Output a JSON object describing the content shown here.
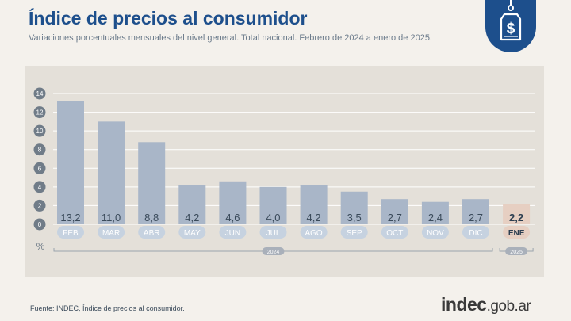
{
  "header": {
    "title": "Índice de precios al consumidor",
    "subtitle": "Variaciones porcentuales mensuales del nivel general. Total nacional. Febrero de 2024 a enero de 2025."
  },
  "badge": {
    "icon": "price-tag-dollar-icon",
    "symbol": "$"
  },
  "footer": {
    "source": "Fuente: INDEC, Índice de precios al consumidor.",
    "logo_brand": "indec",
    "logo_domain": ".gob.ar"
  },
  "colors": {
    "bar": "#a9b6c8",
    "bar_highlight": "#e6cfc2",
    "value_text": "#3a4a5a",
    "value_text_highlight": "#2c3e50",
    "month_chip": "#c6d2e0",
    "month_chip_highlight": "#e6cfc2",
    "month_text": "#ffffff",
    "month_text_highlight": "#2c3e50",
    "year_chip": "#a9b0ba",
    "panel": "#e4e0d9",
    "title": "#1d4f8c"
  },
  "chart_data": {
    "type": "bar",
    "categories": [
      "FEB",
      "MAR",
      "ABR",
      "MAY",
      "JUN",
      "JUL",
      "AGO",
      "SEP",
      "OCT",
      "NOV",
      "DIC",
      "ENE"
    ],
    "values": [
      13.2,
      11.0,
      8.8,
      4.2,
      4.6,
      4.0,
      4.2,
      3.5,
      2.7,
      2.4,
      2.7,
      2.2
    ],
    "value_labels": [
      "13,2",
      "11,0",
      "8,8",
      "4,2",
      "4,6",
      "4,0",
      "4,2",
      "3,5",
      "2,7",
      "2,4",
      "2,7",
      "2,2"
    ],
    "highlight_index": 11,
    "ylim": [
      0,
      14
    ],
    "yticks": [
      0,
      2,
      4,
      6,
      8,
      10,
      12,
      14
    ],
    "ylabel": "%",
    "grid": true,
    "year_groups": [
      {
        "label": "2024",
        "from": 0,
        "to": 10
      },
      {
        "label": "2025",
        "from": 11,
        "to": 11
      }
    ]
  }
}
